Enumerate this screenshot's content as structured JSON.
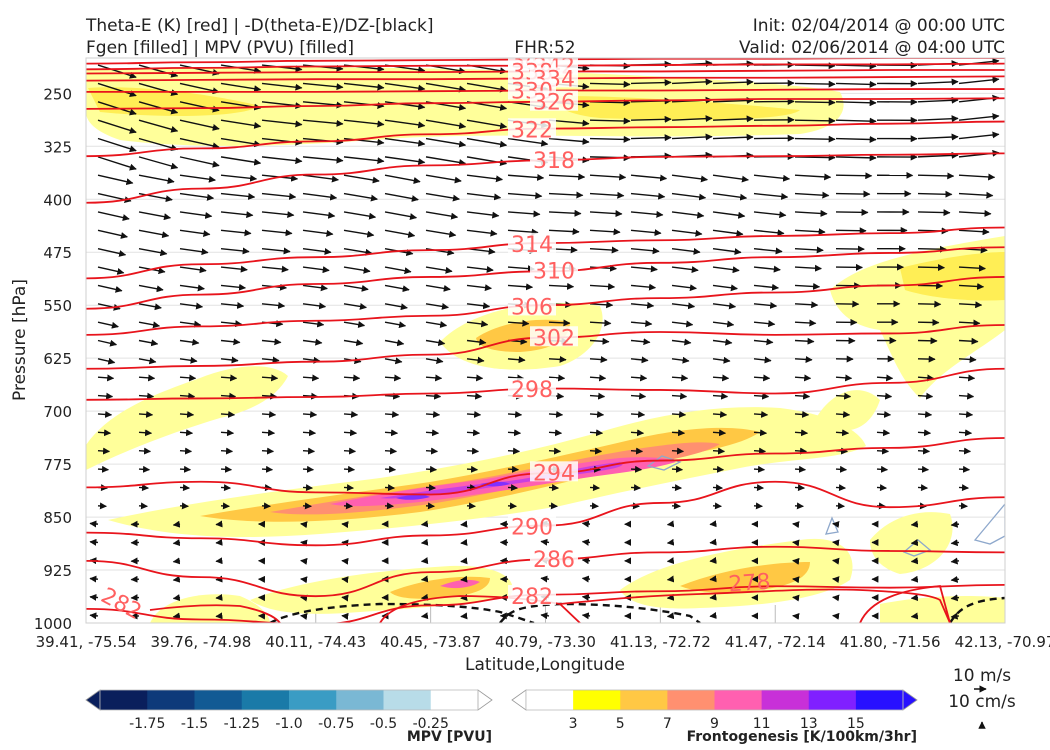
{
  "header": {
    "title_left_1": "Theta-E (K) [red] | -D(theta-E)/DZ-[black]",
    "title_left_2": "Fgen [filled] | MPV (PVU) [filled]",
    "title_center": "FHR:52",
    "title_right_1": "Init: 02/04/2014 @ 00:00 UTC",
    "title_right_2": "Valid: 02/06/2014 @ 04:00 UTC"
  },
  "colors": {
    "theta_e": "#e8141c",
    "theta_e_label": "#ff6060",
    "fgen": [
      "#ffff9a",
      "#ffee55",
      "#ffc844",
      "#ff9070",
      "#ff60b0",
      "#c840e0",
      "#8030ff",
      "#3010ff"
    ],
    "mpv": [
      "#0a1f5c",
      "#0e3a7a",
      "#125a94",
      "#1a7aa8",
      "#3a9cc4",
      "#7ab8d4",
      "#b8dce8",
      "#ffffff"
    ]
  },
  "chart_data": {
    "type": "cross-section",
    "xlabel": "Latitude,Longitude",
    "ylabel": "Pressure [hPa]",
    "x_ticks": [
      "39.41, -75.54",
      "39.76, -74.98",
      "40.11, -74.43",
      "40.45, -73.87",
      "40.79, -73.30",
      "41.13, -72.72",
      "41.47, -72.14",
      "41.80, -71.56",
      "42.13, -70.97"
    ],
    "y_ticks": [
      "250",
      "325",
      "400",
      "475",
      "550",
      "625",
      "700",
      "775",
      "850",
      "925",
      "1000"
    ],
    "ylim": [
      1000,
      200
    ],
    "theta_e_contours": [
      {
        "label": "346",
        "y": [
          208,
          206,
          204,
          203,
          202,
          201,
          201,
          200,
          200
        ]
      },
      {
        "label": "342",
        "y": [
          216,
          214,
          212,
          211,
          211,
          210,
          209,
          209,
          208
        ]
      },
      {
        "label": "338",
        "y": [
          222,
          221,
          220,
          220,
          219,
          219,
          218,
          217,
          217
        ]
      },
      {
        "label": "334",
        "y": [
          232,
          231,
          230,
          230,
          229,
          228,
          228,
          227,
          226
        ]
      },
      {
        "label": "330",
        "y": [
          248,
          248,
          248,
          247,
          246,
          246,
          245,
          244,
          244
        ]
      },
      {
        "label": "326",
        "y": [
          272,
          271,
          268,
          264,
          262,
          260,
          258,
          258,
          257
        ]
      },
      {
        "label": "322",
        "y": [
          339,
          328,
          318,
          308,
          300,
          298,
          296,
          293,
          290
        ]
      },
      {
        "label": "318",
        "y": [
          405,
          385,
          365,
          352,
          345,
          340,
          339,
          337,
          335
        ]
      },
      {
        "label": "314",
        "y": [
          512,
          492,
          482,
          472,
          462,
          458,
          452,
          448,
          440
        ]
      },
      {
        "label": "310",
        "y": [
          555,
          535,
          520,
          510,
          502,
          490,
          482,
          476,
          468
        ]
      },
      {
        "label": "306",
        "y": [
          592,
          580,
          572,
          565,
          550,
          540,
          532,
          522,
          510
        ]
      },
      {
        "label": "302",
        "y": [
          640,
          636,
          630,
          620,
          596,
          588,
          592,
          590,
          578
        ]
      },
      {
        "label": "298",
        "y": [
          684,
          682,
          680,
          675,
          668,
          670,
          675,
          660,
          640
        ]
      },
      {
        "label": "294",
        "y": [
          808,
          800,
          815,
          818,
          788,
          770,
          760,
          752,
          738
        ]
      },
      {
        "label": "290",
        "y": [
          872,
          880,
          890,
          876,
          862,
          830,
          800,
          836,
          822
        ]
      },
      {
        "label": "286",
        "y": [
          912,
          935,
          962,
          928,
          910,
          900,
          892,
          898,
          900
        ]
      },
      {
        "label": "282",
        "y": [
          980,
          995,
          1002,
          975,
          960,
          955,
          948,
          950,
          946
        ]
      }
    ],
    "extra_contour_labels": [
      "278"
    ],
    "mpv_colorbar": {
      "label": "MPV [PVU]",
      "ticks": [
        "-1.75",
        "-1.5",
        "-1.25",
        "-1.0",
        "-0.75",
        "-0.5",
        "-0.25"
      ]
    },
    "fgen_colorbar": {
      "label": "Frontogenesis [K/100km/3hr]",
      "ticks": [
        "3",
        "5",
        "7",
        "9",
        "11",
        "13",
        "15"
      ]
    },
    "vector_reference": [
      "10 m/s",
      "10 cm/s"
    ]
  }
}
